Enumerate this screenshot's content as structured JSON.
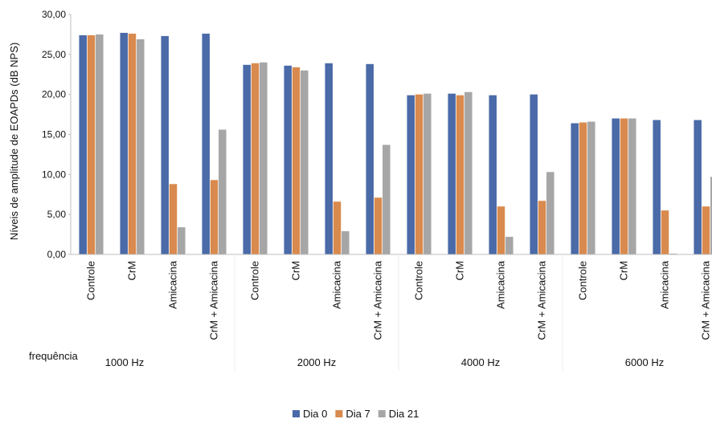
{
  "chart_data": {
    "type": "bar",
    "ylabel": "Níveis de amplitude de EOAPDs (dB NPS)",
    "ylim": [
      0,
      30
    ],
    "yticks": [
      "0,00",
      "5,00",
      "10,00",
      "15,00",
      "20,00",
      "25,00",
      "30,00"
    ],
    "grid": false,
    "legend_position": "bottom-center",
    "group_axis_label": "frequência",
    "groups": [
      {
        "label": "1000 Hz",
        "categories": [
          "Controle",
          "CrM",
          "Amicacina",
          "CrM + Amicacina"
        ]
      },
      {
        "label": "2000 Hz",
        "categories": [
          "Controle",
          "CrM",
          "Amicacina",
          "CrM + Amicacina"
        ]
      },
      {
        "label": "4000 Hz",
        "categories": [
          "Controle",
          "CrM",
          "Amicacina",
          "CrM + Amicacina"
        ]
      },
      {
        "label": "6000 Hz",
        "categories": [
          "Controle",
          "CrM",
          "Amicacina",
          "CrM + Amicacina"
        ]
      }
    ],
    "series": [
      {
        "name": "Dia 0",
        "color": "#4a6aa8",
        "values": [
          27.4,
          27.7,
          27.3,
          27.6,
          23.7,
          23.6,
          23.9,
          23.8,
          19.9,
          20.1,
          19.9,
          20.0,
          16.4,
          17.0,
          16.8,
          16.8
        ]
      },
      {
        "name": "Dia 7",
        "color": "#d98a4e",
        "values": [
          27.4,
          27.6,
          8.8,
          9.3,
          23.9,
          23.4,
          6.6,
          7.1,
          20.0,
          19.9,
          6.0,
          6.7,
          16.5,
          17.0,
          5.5,
          6.0
        ]
      },
      {
        "name": "Dia 21",
        "color": "#a6a6a6",
        "values": [
          27.5,
          26.9,
          3.4,
          15.6,
          24.0,
          23.0,
          2.9,
          13.7,
          20.1,
          20.3,
          2.2,
          10.3,
          16.6,
          17.0,
          0.1,
          9.7
        ]
      }
    ]
  }
}
